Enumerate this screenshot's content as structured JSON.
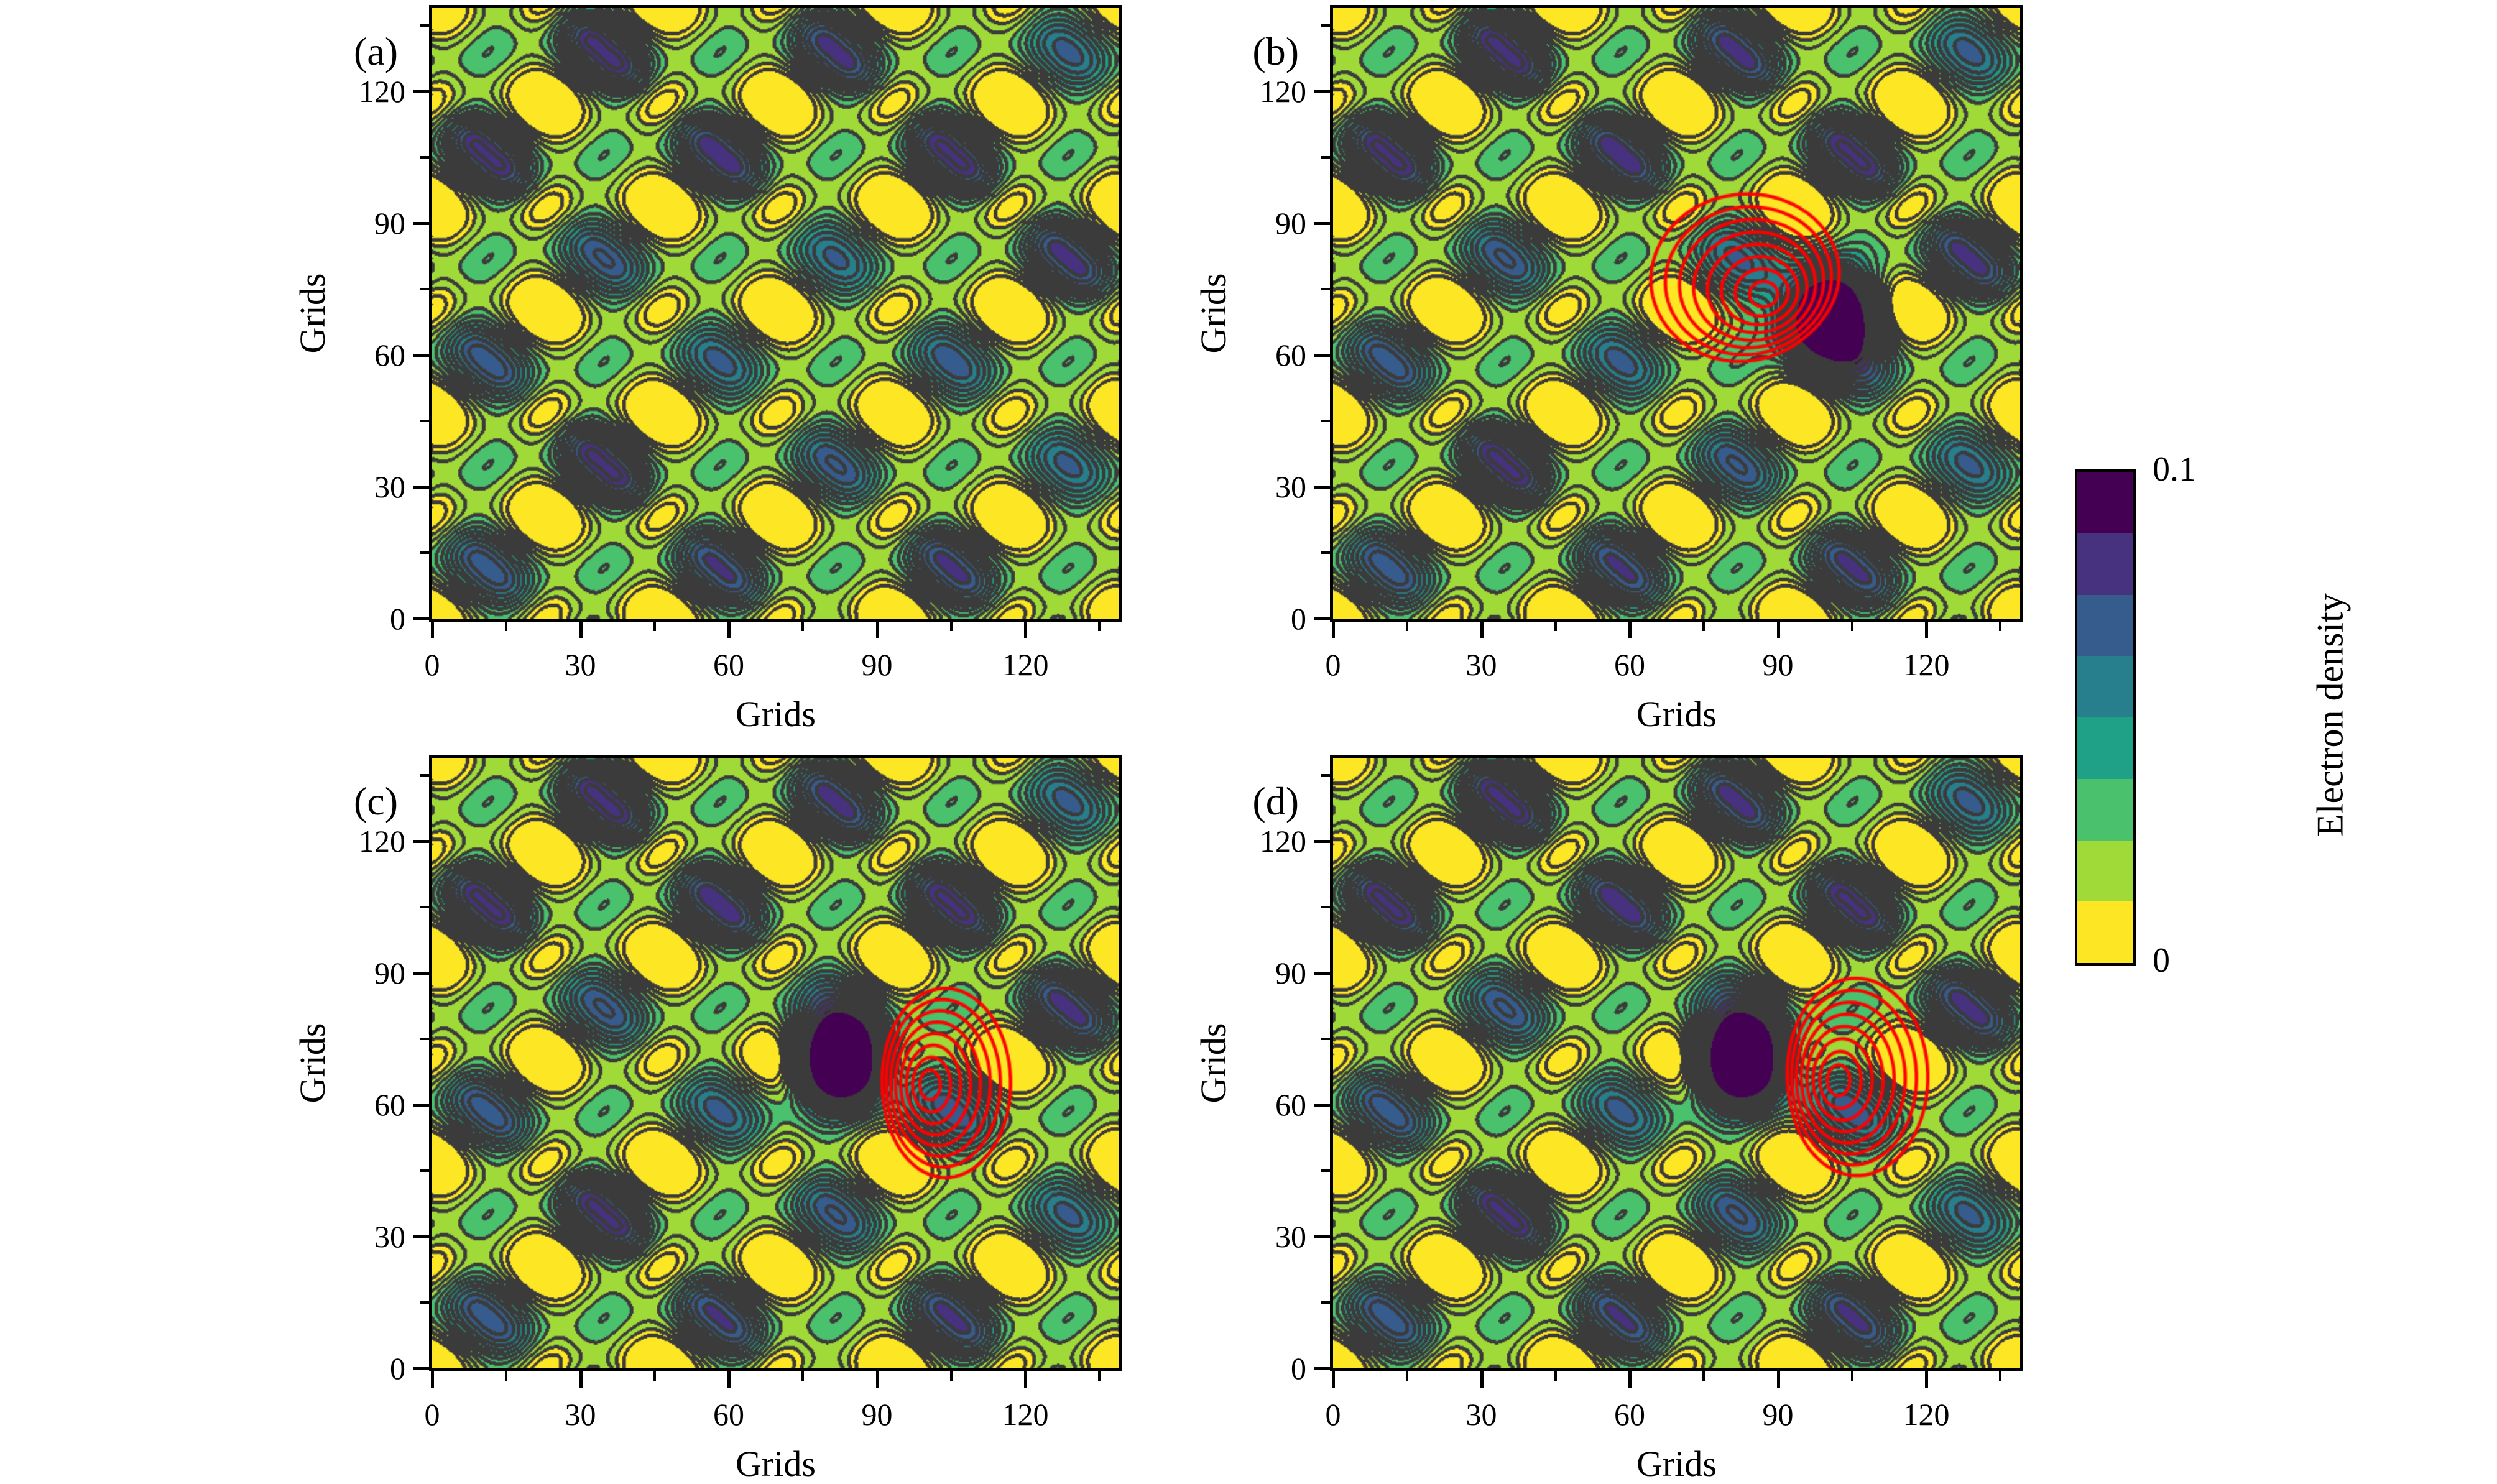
{
  "chart_data": {
    "type": "contour",
    "description": "2x2 grid of filled contour plots of electron density on a periodic lattice supercell; panels b, c, d include a dark impurity (density peak saturating the color scale) with red contour lines of the induced density drawn beside it.",
    "axes": {
      "xlabel": "Grids",
      "ylabel": "Grids",
      "xlim": [
        0,
        139
      ],
      "ylim": [
        0,
        139
      ],
      "major_ticks": [
        0,
        30,
        60,
        90,
        120
      ],
      "minor_ticks": [
        15,
        45,
        75,
        105,
        135
      ]
    },
    "colorbar": {
      "label": "Electron density",
      "tick_top": "0.1",
      "tick_bottom": "0",
      "vmin": 0,
      "vmax": 0.1,
      "n_fill_levels": 8,
      "n_line_levels": 16,
      "fill_colors": [
        "#fde725",
        "#a0da39",
        "#4ac16d",
        "#1fa187",
        "#277f8e",
        "#365c8d",
        "#46327e",
        "#440154"
      ],
      "line_color": "#3b3b3b"
    },
    "lattice": {
      "period": 23.5,
      "phase_center": [
        70,
        70
      ],
      "coeffs": {
        "c00": 0.3,
        "c10": -0.325,
        "c01": 0.15,
        "c11": -0.725
      },
      "well_big": 0.9,
      "well_small": 0.5,
      "core_amp": [
        0.35,
        1.25
      ],
      "map_offset": 0.018,
      "map_scale": 0.02667
    },
    "panels": [
      {
        "id": "a",
        "label": "(a)",
        "impurity": null,
        "red_contours": null
      },
      {
        "id": "b",
        "label": "(b)",
        "impurity": {
          "x": 100,
          "y": 69,
          "amplitude": 0.16,
          "sigma": 6.3
        },
        "red_contours": {
          "cx": 87.5,
          "cy": 73.5,
          "R": 18.5,
          "ecc": 0.33,
          "theta0_deg": 135,
          "yscale": 1.0,
          "growth": 0.9,
          "count": 8,
          "color": "#ff0000"
        }
      },
      {
        "id": "c",
        "label": "(c)",
        "impurity": {
          "x": 82.5,
          "y": 69.5,
          "amplitude": 0.16,
          "sigma": 6.3
        },
        "red_contours": {
          "cx": 100.5,
          "cy": 64.5,
          "R": 13,
          "ecc": 0.28,
          "theta0_deg": 5,
          "yscale": 1.6,
          "growth": 0.88,
          "count": 8,
          "color": "#ff0000"
        }
      },
      {
        "id": "d",
        "label": "(d)",
        "impurity": {
          "x": 82.5,
          "y": 69.5,
          "amplitude": 0.16,
          "sigma": 6.3
        },
        "red_contours": {
          "cx": 102,
          "cy": 65.5,
          "R": 14.2,
          "ecc": 0.3,
          "theta0_deg": 8,
          "yscale": 1.52,
          "growth": 0.88,
          "count": 8,
          "color": "#ff0000"
        }
      }
    ]
  }
}
